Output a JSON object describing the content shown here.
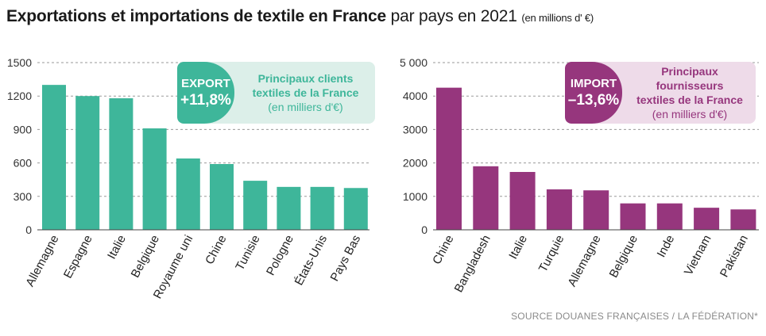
{
  "title": {
    "bold": "Exportations et importations de textile en France",
    "normal": "par pays en 2021",
    "unit": "(en millions d' €)"
  },
  "source": "SOURCE DOUANES FRANÇAISES / LA FÉDÉRATION*",
  "callouts": {
    "export": {
      "keyword": "EXPORT",
      "percent": "+11,8%",
      "line1": "Principaux clients",
      "line2": "textiles de la France",
      "line3": "(en milliers d'€)"
    },
    "import": {
      "keyword": "IMPORT",
      "percent": "–13,6%",
      "line1": "Principaux fournisseurs",
      "line2": "textiles de la France",
      "line3": "(en milliers d'€)"
    }
  },
  "chart_data": [
    {
      "type": "bar",
      "color": "#3eb69a",
      "categories": [
        "Allemagne",
        "Espagne",
        "Italie",
        "Belgique",
        "Royaume uni",
        "Chine",
        "Tunisie",
        "Pologne",
        "États-Unis",
        "Pays Bas"
      ],
      "values": [
        1300,
        1200,
        1180,
        910,
        640,
        590,
        440,
        385,
        385,
        375
      ],
      "ylim": [
        0,
        1500
      ],
      "yticks": [
        0,
        300,
        600,
        900,
        1200,
        1500
      ],
      "ytick_labels": [
        "0",
        "300",
        "600",
        "900",
        "1200",
        "1500"
      ],
      "grid": true
    },
    {
      "type": "bar",
      "color": "#96367d",
      "categories": [
        "Chine",
        "Bangladesh",
        "Italie",
        "Turquie",
        "Allemagne",
        "Belgique",
        "Inde",
        "Vietnam",
        "Pakistan"
      ],
      "values": [
        4250,
        1900,
        1730,
        1210,
        1180,
        790,
        790,
        660,
        610
      ],
      "ylim": [
        0,
        5000
      ],
      "yticks": [
        0,
        1000,
        2000,
        3000,
        4000,
        5000
      ],
      "ytick_labels": [
        "0",
        "1000",
        "2000",
        "3000",
        "4000",
        "5 000"
      ],
      "grid": true
    }
  ]
}
